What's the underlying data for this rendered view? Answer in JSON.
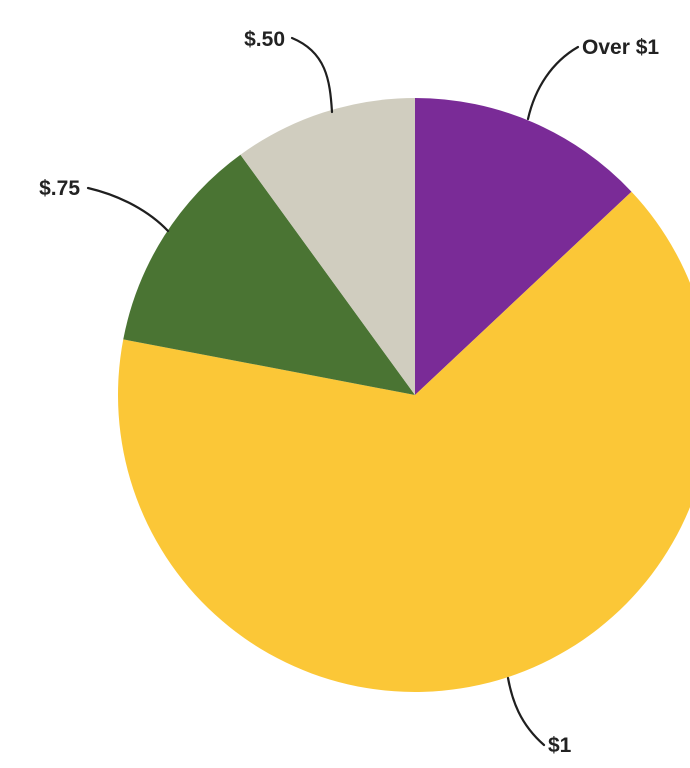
{
  "chart_data": {
    "type": "pie",
    "title": "",
    "start": "top",
    "direction": "clockwise",
    "slices": [
      {
        "label": "Over $1",
        "value": 13,
        "color": "#7a2b97"
      },
      {
        "label": "$1",
        "value": 65,
        "color": "#fbc737"
      },
      {
        "label": "$.75",
        "value": 12,
        "color": "#4a7433"
      },
      {
        "label": "$.50",
        "value": 10,
        "color": "#d0cdbf"
      }
    ]
  }
}
